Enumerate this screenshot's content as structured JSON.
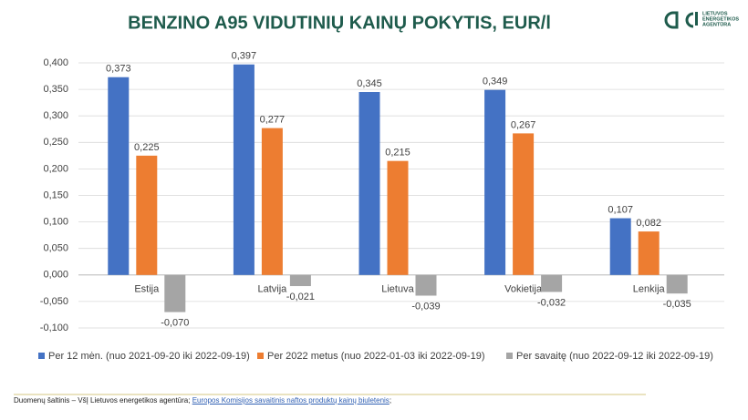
{
  "chart_data": {
    "type": "bar",
    "title": "BENZINO A95 VIDUTINIŲ KAINŲ POKYTIS, EUR/l",
    "categories": [
      "Estija",
      "Latvija",
      "Lietuva",
      "Vokietija",
      "Lenkija"
    ],
    "series": [
      {
        "name": "Per 12 mėn. (nuo 2021-09-20 iki 2022-09-19)",
        "color": "#4472c4",
        "values": [
          0.373,
          0.397,
          0.345,
          0.349,
          0.107
        ],
        "value_labels": [
          "0,373",
          "0,397",
          "0,345",
          "0,349",
          "0,107"
        ]
      },
      {
        "name": "Per 2022 metus (nuo 2022-01-03 iki 2022-09-19)",
        "color": "#ed7d31",
        "values": [
          0.225,
          0.277,
          0.215,
          0.267,
          0.082
        ],
        "value_labels": [
          "0,225",
          "0,277",
          "0,215",
          "0,267",
          "0,082"
        ]
      },
      {
        "name": "Per savaitę (nuo 2022-09-12 iki 2022-09-19)",
        "color": "#a5a5a5",
        "values": [
          -0.07,
          -0.021,
          -0.039,
          -0.032,
          -0.035
        ],
        "value_labels": [
          "-0,070",
          "-0,021",
          "-0,039",
          "-0,032",
          "-0,035"
        ]
      }
    ],
    "ylim": [
      -0.1,
      0.4
    ],
    "yticks": [
      {
        "value": -0.1,
        "label": "-0,100"
      },
      {
        "value": -0.05,
        "label": "-0,050"
      },
      {
        "value": 0,
        "label": "0,000"
      },
      {
        "value": 0.05,
        "label": "0,050"
      },
      {
        "value": 0.1,
        "label": "0,100"
      },
      {
        "value": 0.15,
        "label": "0,150"
      },
      {
        "value": 0.2,
        "label": "0,200"
      },
      {
        "value": 0.25,
        "label": "0,250"
      },
      {
        "value": 0.3,
        "label": "0,300"
      },
      {
        "value": 0.35,
        "label": "0,350"
      },
      {
        "value": 0.4,
        "label": "0,400"
      }
    ],
    "grid": true,
    "legend": "bottom"
  },
  "logo": [
    "LIETUVOS",
    "ENERGETIKOS",
    "AGENTŪRA"
  ],
  "footer": {
    "source": "Duomenų šaltinis – VšĮ Lietuvos energetikos agentūra;",
    "link": "Europos Komisijos savaitinis naftos produktų kainų biuletenis",
    "end": ";"
  }
}
